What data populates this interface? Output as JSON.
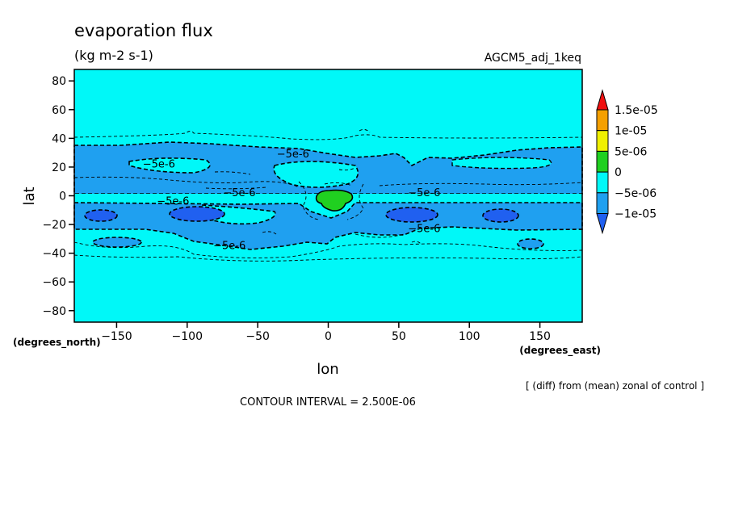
{
  "chart_data": {
    "type": "contour",
    "title": "evaporation flux",
    "units": "(kg m-2 s-1)",
    "run_label": "AGCM5_adj_1keq",
    "xlabel": "lon",
    "ylabel": "lat",
    "x_unit_label": "(degrees_east)",
    "y_unit_label": "(degrees_north)",
    "xlim": [
      -180,
      180
    ],
    "ylim": [
      -88,
      88
    ],
    "x_ticks": [
      -150,
      -100,
      -50,
      0,
      50,
      100,
      150
    ],
    "x_tick_labels": [
      "-150",
      "-100",
      "-50",
      "0",
      "50",
      "100",
      "150"
    ],
    "y_ticks": [
      80,
      60,
      40,
      20,
      0,
      -20,
      -40,
      -60,
      -80
    ],
    "y_tick_labels": [
      "80",
      "60",
      "40",
      "20",
      "0",
      "-20",
      "-40",
      "-60",
      "-80"
    ],
    "footnote": "[ (diff) from (mean) zonal of control ]",
    "contour_interval_text": "CONTOUR INTERVAL = 2.500E-06",
    "colorbar": {
      "labels": [
        "1.5e-05",
        "1e-05",
        "5e-06",
        "0",
        "-5e-06",
        "-1e-05"
      ],
      "colors": [
        "#f01010",
        "#f5a000",
        "#f0f000",
        "#20d020",
        "#00f8f8",
        "#1fa0f0",
        "#2060f0"
      ]
    },
    "contour_labels": [
      {
        "text": "-5e-6",
        "lon": -25,
        "lat": 29
      },
      {
        "text": "-5e-6",
        "lon": -120,
        "lat": 22
      },
      {
        "text": "-5e-6",
        "lon": -63,
        "lat": 2
      },
      {
        "text": "-5e-6",
        "lon": -110,
        "lat": -4
      },
      {
        "text": "-5e-6",
        "lon": 68,
        "lat": 2
      },
      {
        "text": "-5e-6",
        "lon": 68,
        "lat": -23
      },
      {
        "text": "-5e-6",
        "lon": -70,
        "lat": -35
      }
    ],
    "levels": {
      "background": 0,
      "bands": -5e-06,
      "cores": -1e-05,
      "positive": 5e-06
    }
  }
}
